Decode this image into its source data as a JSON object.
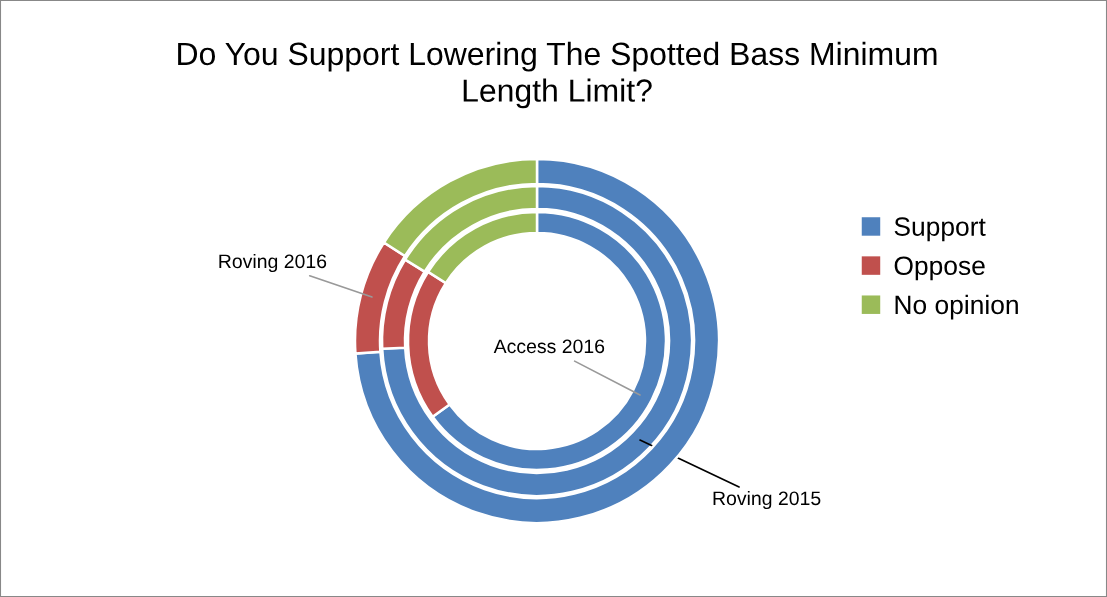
{
  "chart_data": {
    "type": "donut",
    "title": "Do You Support Lowering The Spotted Bass Minimum Length Limit?",
    "categories": [
      "Support",
      "Oppose",
      "No opinion"
    ],
    "colors": [
      "#4f81bd",
      "#c0504d",
      "#9bbb59"
    ],
    "series": [
      {
        "name": "Access 2016",
        "values": [
          65,
          19,
          16
        ]
      },
      {
        "name": "Roving 2015",
        "values": [
          74.2,
          9.6,
          16.2
        ]
      },
      {
        "name": "Roving 2016",
        "values": [
          73.9,
          10.2,
          15.9
        ]
      }
    ],
    "legend": "right"
  }
}
